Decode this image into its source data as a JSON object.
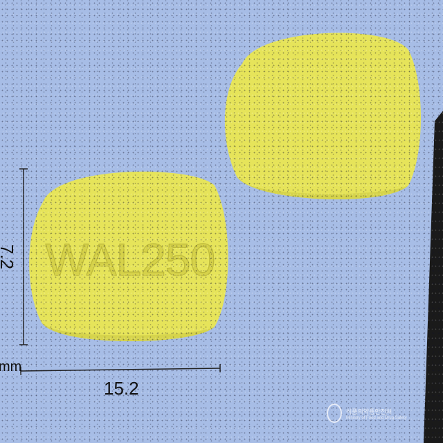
{
  "pill": {
    "imprint": "WAL250",
    "color": "#e6e45a",
    "imprint_color": "#cbc640"
  },
  "background": {
    "color": "#a7bde6"
  },
  "dimensions": {
    "width": "15.2",
    "height": "7.2",
    "unit": "mm"
  },
  "watermark": {
    "korean_text": "식품의약품안전처",
    "english_text": "Ministry of Food and Drug Safety"
  }
}
